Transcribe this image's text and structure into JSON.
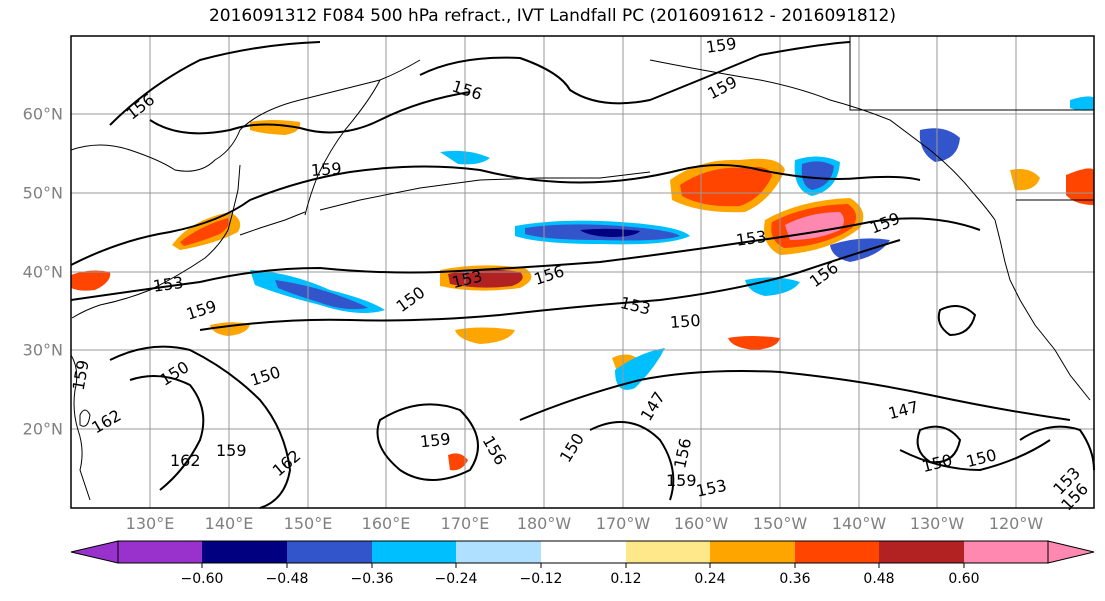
{
  "title": "2016091312 F084 500 hPa refract., IVT Landfall PC (2016091612 - 2016091812)",
  "lat_labels": [
    "60°N",
    "50°N",
    "40°N",
    "30°N",
    "20°N"
  ],
  "lon_labels": [
    "130°E",
    "140°E",
    "150°E",
    "160°E",
    "170°E",
    "180°W",
    "170°W",
    "160°W",
    "150°W",
    "140°W",
    "130°W",
    "120°W"
  ],
  "colorbar": {
    "ticks": [
      "−0.60",
      "−0.48",
      "−0.36",
      "−0.24",
      "−0.12",
      "0.12",
      "0.24",
      "0.36",
      "0.48",
      "0.60"
    ],
    "colors": [
      "#9932cc",
      "#000080",
      "#3355cc",
      "#00bfff",
      "#b0e0ff",
      "#ffffff",
      "#ffe88a",
      "#ffa500",
      "#ff4500",
      "#b22222",
      "#ff88b0"
    ]
  },
  "contour_labels": [
    "156",
    "159",
    "156",
    "159",
    "159",
    "153",
    "159",
    "153",
    "156",
    "153",
    "156",
    "150",
    "159",
    "153",
    "150",
    "150",
    "150",
    "162",
    "159",
    "147",
    "159",
    "156",
    "150",
    "156",
    "147",
    "150",
    "150",
    "162",
    "162",
    "159",
    "159",
    "153",
    "153",
    "156"
  ],
  "colors": {
    "contour": "#000000",
    "coast": "#000000",
    "grid": "#999999",
    "axis_label": "#808080"
  }
}
